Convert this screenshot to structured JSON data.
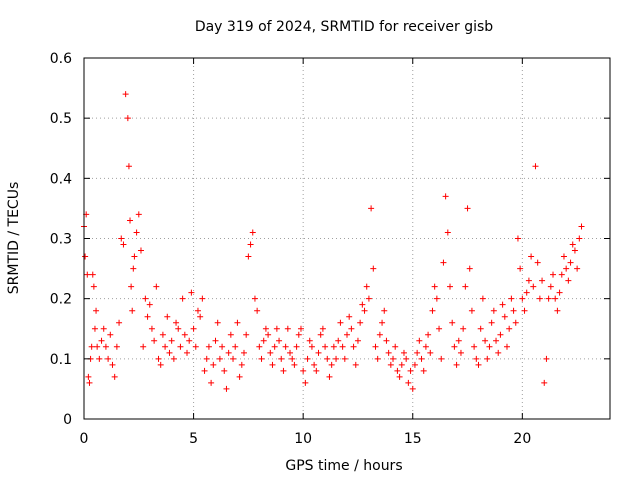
{
  "chart_data": {
    "type": "scatter",
    "title": "Day 319 of 2024, SRMTID for receiver gisb",
    "xlabel": "GPS time / hours",
    "ylabel": "SRMTID / TECUs",
    "xlim": [
      0,
      24
    ],
    "ylim": [
      0,
      0.6
    ],
    "xticks": [
      0,
      5,
      10,
      15,
      20
    ],
    "xtick_labels": [
      "0",
      "5",
      "10",
      "15",
      "20"
    ],
    "yticks": [
      0,
      0.1,
      0.2,
      0.3,
      0.4,
      0.5,
      0.6
    ],
    "ytick_labels": [
      "0",
      "0.1",
      "0.2",
      "0.3",
      "0.4",
      "0.5",
      "0.6"
    ],
    "grid": true,
    "marker": "+",
    "color": "#ff0000",
    "series": [
      {
        "name": "gisb",
        "x": [
          0.0,
          0.05,
          0.1,
          0.15,
          0.2,
          0.25,
          0.3,
          0.35,
          0.4,
          0.45,
          0.5,
          0.55,
          0.6,
          0.7,
          0.8,
          0.9,
          1.0,
          1.1,
          1.2,
          1.3,
          1.4,
          1.5,
          1.6,
          1.7,
          1.8,
          1.9,
          2.0,
          2.05,
          2.1,
          2.15,
          2.2,
          2.25,
          2.3,
          2.4,
          2.5,
          2.6,
          2.7,
          2.8,
          2.9,
          3.0,
          3.1,
          3.2,
          3.3,
          3.4,
          3.5,
          3.6,
          3.7,
          3.8,
          3.9,
          4.0,
          4.1,
          4.2,
          4.3,
          4.4,
          4.5,
          4.6,
          4.7,
          4.8,
          4.9,
          5.0,
          5.1,
          5.2,
          5.3,
          5.4,
          5.5,
          5.6,
          5.7,
          5.8,
          5.9,
          6.0,
          6.1,
          6.2,
          6.3,
          6.4,
          6.5,
          6.6,
          6.7,
          6.8,
          6.9,
          7.0,
          7.1,
          7.2,
          7.3,
          7.4,
          7.5,
          7.6,
          7.7,
          7.8,
          7.9,
          8.0,
          8.1,
          8.2,
          8.3,
          8.4,
          8.5,
          8.6,
          8.7,
          8.8,
          8.9,
          9.0,
          9.1,
          9.2,
          9.3,
          9.4,
          9.5,
          9.6,
          9.7,
          9.8,
          9.9,
          10.0,
          10.1,
          10.2,
          10.3,
          10.4,
          10.5,
          10.6,
          10.7,
          10.8,
          10.9,
          11.0,
          11.1,
          11.2,
          11.3,
          11.4,
          11.5,
          11.6,
          11.7,
          11.8,
          11.9,
          12.0,
          12.1,
          12.2,
          12.3,
          12.4,
          12.5,
          12.6,
          12.7,
          12.8,
          12.9,
          13.0,
          13.1,
          13.2,
          13.3,
          13.4,
          13.5,
          13.6,
          13.7,
          13.8,
          13.9,
          14.0,
          14.1,
          14.2,
          14.3,
          14.4,
          14.5,
          14.6,
          14.7,
          14.8,
          14.9,
          15.0,
          15.1,
          15.2,
          15.3,
          15.4,
          15.5,
          15.6,
          15.7,
          15.8,
          15.9,
          16.0,
          16.1,
          16.2,
          16.3,
          16.4,
          16.5,
          16.6,
          16.7,
          16.8,
          16.9,
          17.0,
          17.1,
          17.2,
          17.3,
          17.4,
          17.5,
          17.6,
          17.7,
          17.8,
          17.9,
          18.0,
          18.1,
          18.2,
          18.3,
          18.4,
          18.5,
          18.6,
          18.7,
          18.8,
          18.9,
          19.0,
          19.1,
          19.2,
          19.3,
          19.4,
          19.5,
          19.6,
          19.7,
          19.8,
          19.9,
          20.0,
          20.1,
          20.2,
          20.3,
          20.4,
          20.5,
          20.6,
          20.7,
          20.8,
          20.9,
          21.0,
          21.1,
          21.2,
          21.3,
          21.4,
          21.5,
          21.6,
          21.7,
          21.8,
          21.9,
          22.0,
          22.1,
          22.2,
          22.3,
          22.4,
          22.5,
          22.6,
          22.7
        ],
        "y": [
          0.32,
          0.27,
          0.34,
          0.24,
          0.07,
          0.06,
          0.1,
          0.12,
          0.24,
          0.22,
          0.15,
          0.18,
          0.12,
          0.1,
          0.13,
          0.15,
          0.12,
          0.1,
          0.14,
          0.09,
          0.07,
          0.12,
          0.16,
          0.3,
          0.29,
          0.54,
          0.5,
          0.42,
          0.33,
          0.22,
          0.18,
          0.25,
          0.27,
          0.31,
          0.34,
          0.28,
          0.12,
          0.2,
          0.17,
          0.19,
          0.15,
          0.13,
          0.22,
          0.1,
          0.09,
          0.14,
          0.12,
          0.17,
          0.11,
          0.13,
          0.1,
          0.16,
          0.15,
          0.12,
          0.2,
          0.14,
          0.11,
          0.13,
          0.21,
          0.15,
          0.12,
          0.18,
          0.17,
          0.2,
          0.08,
          0.1,
          0.12,
          0.06,
          0.09,
          0.13,
          0.16,
          0.1,
          0.12,
          0.08,
          0.05,
          0.11,
          0.14,
          0.1,
          0.12,
          0.16,
          0.07,
          0.09,
          0.11,
          0.14,
          0.27,
          0.29,
          0.31,
          0.2,
          0.18,
          0.12,
          0.1,
          0.13,
          0.15,
          0.14,
          0.11,
          0.09,
          0.12,
          0.15,
          0.13,
          0.1,
          0.08,
          0.12,
          0.15,
          0.11,
          0.1,
          0.09,
          0.12,
          0.14,
          0.15,
          0.08,
          0.06,
          0.1,
          0.13,
          0.12,
          0.09,
          0.08,
          0.11,
          0.14,
          0.15,
          0.12,
          0.1,
          0.07,
          0.09,
          0.12,
          0.1,
          0.13,
          0.16,
          0.12,
          0.1,
          0.14,
          0.17,
          0.15,
          0.12,
          0.09,
          0.13,
          0.16,
          0.19,
          0.18,
          0.22,
          0.2,
          0.35,
          0.25,
          0.12,
          0.1,
          0.14,
          0.16,
          0.18,
          0.13,
          0.11,
          0.09,
          0.1,
          0.12,
          0.08,
          0.07,
          0.09,
          0.11,
          0.1,
          0.06,
          0.08,
          0.05,
          0.09,
          0.11,
          0.13,
          0.1,
          0.08,
          0.12,
          0.14,
          0.11,
          0.18,
          0.22,
          0.2,
          0.15,
          0.1,
          0.26,
          0.37,
          0.31,
          0.22,
          0.16,
          0.12,
          0.09,
          0.13,
          0.11,
          0.15,
          0.22,
          0.35,
          0.25,
          0.18,
          0.12,
          0.1,
          0.09,
          0.15,
          0.2,
          0.13,
          0.1,
          0.12,
          0.16,
          0.18,
          0.13,
          0.11,
          0.14,
          0.19,
          0.17,
          0.12,
          0.15,
          0.2,
          0.18,
          0.16,
          0.3,
          0.25,
          0.2,
          0.18,
          0.21,
          0.23,
          0.27,
          0.22,
          0.42,
          0.26,
          0.2,
          0.23,
          0.06,
          0.1,
          0.2,
          0.22,
          0.24,
          0.2,
          0.18,
          0.21,
          0.24,
          0.27,
          0.25,
          0.23,
          0.26,
          0.29,
          0.28,
          0.25,
          0.3,
          0.32
        ]
      }
    ]
  }
}
